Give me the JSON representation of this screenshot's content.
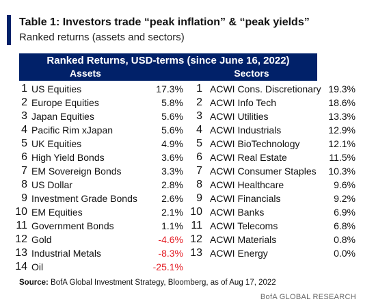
{
  "title": "Table 1: Investors trade “peak inflation” & “peak yields”",
  "subtitle": "Ranked returns (assets and sectors)",
  "table": {
    "banner": "Ranked Returns, USD-terms (since June 16, 2022)",
    "assets_header": "Assets",
    "sectors_header": "Sectors",
    "assets": [
      {
        "rank": "1",
        "name": "US Equities",
        "value": "17.3%"
      },
      {
        "rank": "2",
        "name": "Europe Equities",
        "value": "5.8%"
      },
      {
        "rank": "3",
        "name": "Japan Equities",
        "value": "5.6%"
      },
      {
        "rank": "4",
        "name": "Pacific Rim xJapan",
        "value": "5.6%"
      },
      {
        "rank": "5",
        "name": "UK Equities",
        "value": "4.9%"
      },
      {
        "rank": "6",
        "name": "High Yield Bonds",
        "value": "3.6%"
      },
      {
        "rank": "7",
        "name": "EM Sovereign Bonds",
        "value": "3.3%"
      },
      {
        "rank": "8",
        "name": "US Dollar",
        "value": "2.8%"
      },
      {
        "rank": "9",
        "name": "Investment Grade Bonds",
        "value": "2.6%"
      },
      {
        "rank": "10",
        "name": "EM Equities",
        "value": "2.1%"
      },
      {
        "rank": "11",
        "name": "Government Bonds",
        "value": "1.1%"
      },
      {
        "rank": "12",
        "name": "Gold",
        "value": "-4.6%"
      },
      {
        "rank": "13",
        "name": "Industrial Metals",
        "value": "-8.3%"
      },
      {
        "rank": "14",
        "name": "Oil",
        "value": "-25.1%"
      }
    ],
    "sectors": [
      {
        "rank": "1",
        "name": "ACWI Cons. Discretionary",
        "value": "19.3%"
      },
      {
        "rank": "2",
        "name": "ACWI Info Tech",
        "value": "18.6%"
      },
      {
        "rank": "3",
        "name": "ACWI Utilities",
        "value": "13.3%"
      },
      {
        "rank": "4",
        "name": "ACWI Industrials",
        "value": "12.9%"
      },
      {
        "rank": "5",
        "name": "ACWI BioTechnology",
        "value": "12.1%"
      },
      {
        "rank": "6",
        "name": "ACWI Real Estate",
        "value": "11.5%"
      },
      {
        "rank": "7",
        "name": "ACWI Consumer Staples",
        "value": "10.3%"
      },
      {
        "rank": "8",
        "name": "ACWI Healthcare",
        "value": "9.6%"
      },
      {
        "rank": "9",
        "name": "ACWI Financials",
        "value": "9.2%"
      },
      {
        "rank": "10",
        "name": "ACWI Banks",
        "value": "6.9%"
      },
      {
        "rank": "11",
        "name": "ACWI Telecoms",
        "value": "6.8%"
      },
      {
        "rank": "12",
        "name": "ACWI Materials",
        "value": "0.8%"
      },
      {
        "rank": "13",
        "name": "ACWI Energy",
        "value": "0.0%"
      }
    ]
  },
  "source": {
    "label": "Source:",
    "text": "BofA Global Investment Strategy, Bloomberg, as of Aug 17, 2022"
  },
  "brand": "BofA GLOBAL RESEARCH",
  "colors": {
    "header_bg": "#012169",
    "negative": "#e31b23",
    "accent_bar": "#012169"
  }
}
